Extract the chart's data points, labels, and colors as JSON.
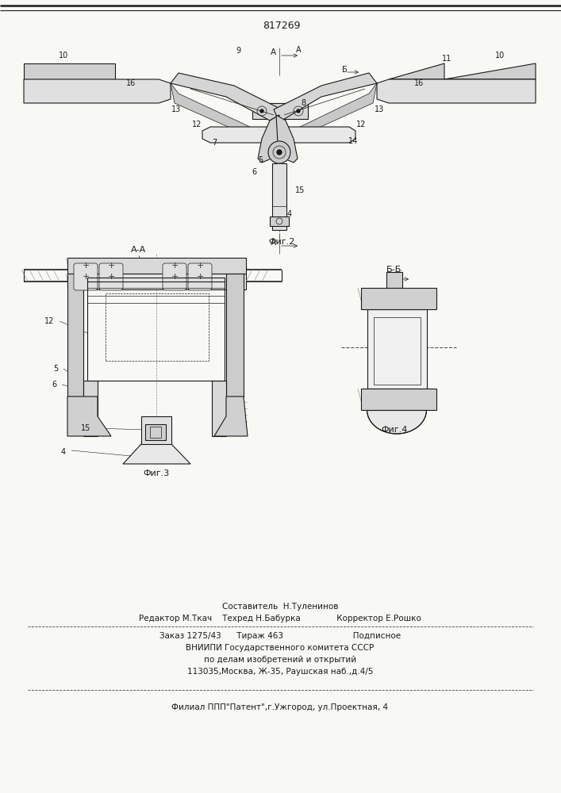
{
  "patent_number": "817269",
  "background_color": "#f8f8f5",
  "line_color": "#1a1a1a",
  "fig2_label": "Фиг.2",
  "fig3_label": "Фиг.3",
  "fig4_label": "Фиг.4",
  "aa_label": "А-А",
  "bb_label": "Б-Б",
  "fig_width": 7.07,
  "fig_height": 10.0
}
